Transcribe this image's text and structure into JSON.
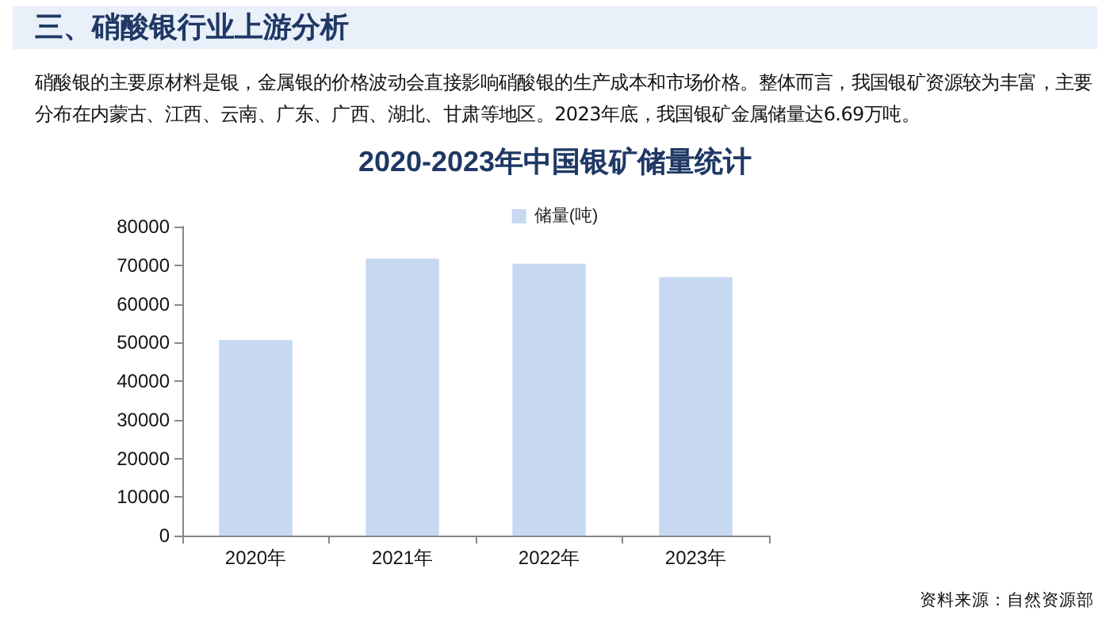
{
  "chart_data": {
    "type": "bar",
    "title": "2020-2023年中国银矿储量统计",
    "annotations": [
      "三、硝酸银行业上游分析",
      "硝酸银的主要原材料是银，金属银的价格波动会直接影响硝酸银的生产成本和市场价格。整体而言，我国银矿资源较为丰富，主要分布在内蒙古、江西、云南、广东、广西、湖北、甘肃等地区。2023年底，我国银矿金属储量达6.69万吨。",
      "资料来源：自然资源部"
    ],
    "categories": [
      "2020年",
      "2021年",
      "2022年",
      "2023年"
    ],
    "series": [
      {
        "name": "储量(吨)",
        "color": "#c6d9f1",
        "values": [
          50600,
          71700,
          70400,
          66900
        ]
      }
    ],
    "ylim": [
      0,
      80000
    ],
    "yticks": [
      0,
      10000,
      20000,
      30000,
      40000,
      50000,
      60000,
      70000,
      80000
    ],
    "grid": false,
    "legend": "top"
  }
}
